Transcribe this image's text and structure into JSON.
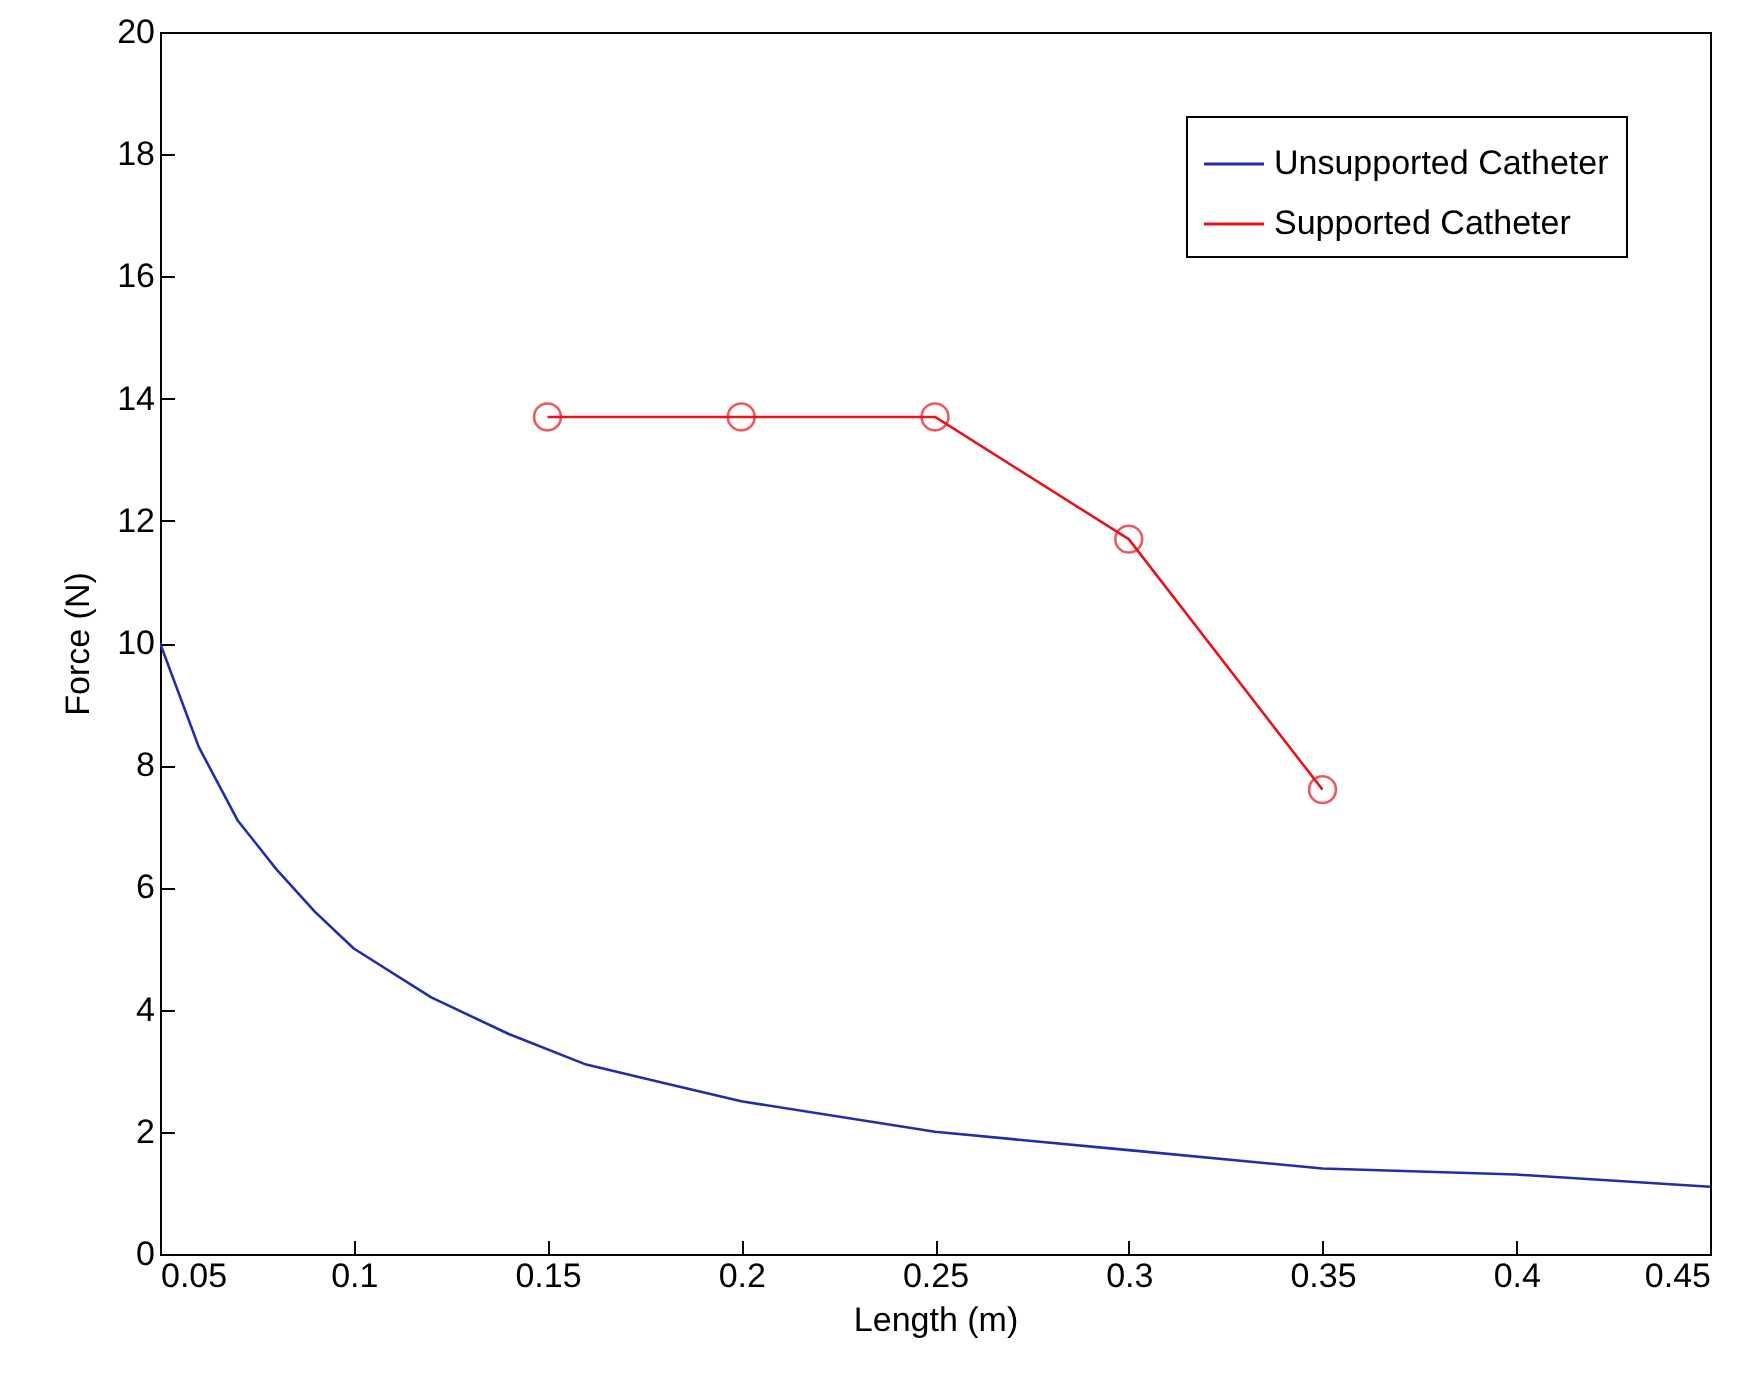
{
  "chart_data": {
    "type": "line",
    "xlabel": "Length (m)",
    "ylabel": "Force (N)",
    "xlim": [
      0.05,
      0.45
    ],
    "xticks": [
      0.05,
      0.1,
      0.15,
      0.2,
      0.25,
      0.3,
      0.35,
      0.4,
      0.45
    ],
    "ylim": [
      0,
      20
    ],
    "yticks": [
      0,
      2,
      4,
      6,
      8,
      10,
      12,
      14,
      16,
      18,
      20
    ],
    "grid": false,
    "legend": "top right",
    "line_style": "solid",
    "series": [
      {
        "name": "Unsupported Catheter",
        "color": "#1f2fa8",
        "marker": "none",
        "x": [
          0.05,
          0.06,
          0.07,
          0.08,
          0.09,
          0.1,
          0.12,
          0.14,
          0.16,
          0.18,
          0.2,
          0.25,
          0.3,
          0.35,
          0.4,
          0.45
        ],
        "values": [
          10,
          8.3,
          7.1,
          6.3,
          5.6,
          5,
          4.2,
          3.6,
          3.1,
          2.8,
          2.5,
          2,
          1.7,
          1.4,
          1.3,
          1.1
        ]
      },
      {
        "name": "Supported Catheter",
        "color": "#e8141c",
        "marker": "circle",
        "x": [
          0.15,
          0.2,
          0.25,
          0.3,
          0.35
        ],
        "values": [
          13.7,
          13.7,
          13.7,
          11.7,
          7.6
        ]
      }
    ]
  }
}
